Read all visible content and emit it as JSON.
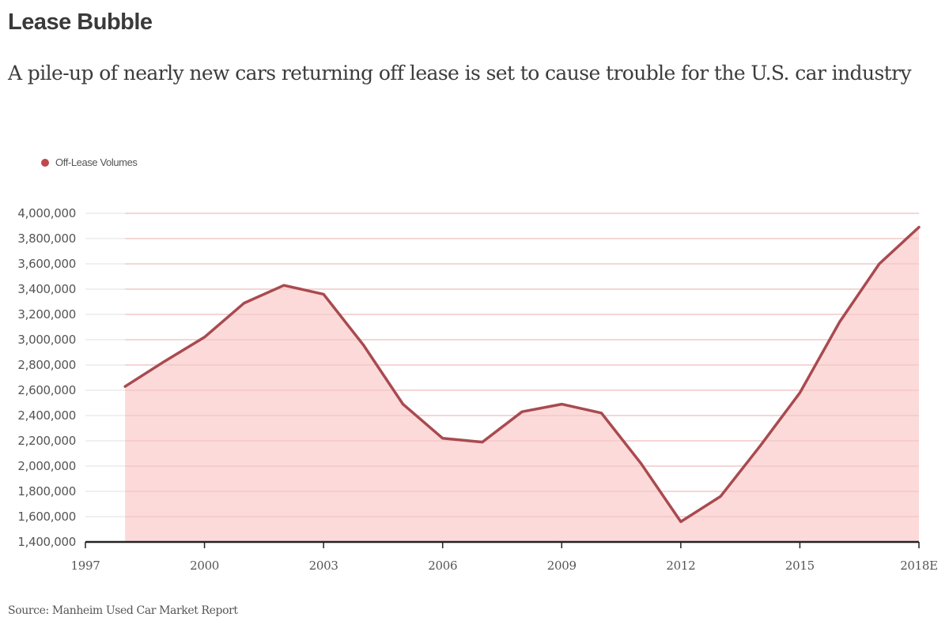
{
  "header": {
    "title": "Lease Bubble",
    "subtitle": "A pile-up of nearly new cars returning off lease is set to cause trouble for the U.S. car industry"
  },
  "footer": {
    "source": "Source: Manheim Used Car Market Report"
  },
  "colors": {
    "line": "#a94a4f",
    "fill": "#fbd3d3",
    "legend_dot": "#c0474c",
    "gridline": "#ececec",
    "axis": "#222222"
  },
  "chart_data": {
    "type": "area",
    "title": "Lease Bubble",
    "subtitle": "A pile-up of nearly new cars returning off lease is set to cause trouble for the U.S. car industry",
    "xlabel": "",
    "ylabel": "",
    "legend": {
      "entries": [
        "Off-Lease Volumes"
      ],
      "placement": "top-left"
    },
    "grid": true,
    "xlim": [
      1997,
      2018
    ],
    "ylim": [
      1400000,
      4000000
    ],
    "x_ticks": [
      {
        "value": 1997,
        "label": "1997"
      },
      {
        "value": 2000,
        "label": "2000"
      },
      {
        "value": 2003,
        "label": "2003"
      },
      {
        "value": 2006,
        "label": "2006"
      },
      {
        "value": 2009,
        "label": "2009"
      },
      {
        "value": 2012,
        "label": "2012"
      },
      {
        "value": 2015,
        "label": "2015"
      },
      {
        "value": 2018,
        "label": "2018E"
      }
    ],
    "y_ticks": [
      {
        "value": 4000000,
        "label": "4,000,000"
      },
      {
        "value": 3800000,
        "label": "3,800,000"
      },
      {
        "value": 3600000,
        "label": "3,600,000"
      },
      {
        "value": 3400000,
        "label": "3,400,000"
      },
      {
        "value": 3200000,
        "label": "3,200,000"
      },
      {
        "value": 3000000,
        "label": "3,000,000"
      },
      {
        "value": 2800000,
        "label": "2,800,000"
      },
      {
        "value": 2600000,
        "label": "2,600,000"
      },
      {
        "value": 2400000,
        "label": "2,400,000"
      },
      {
        "value": 2200000,
        "label": "2,200,000"
      },
      {
        "value": 2000000,
        "label": "2,000,000"
      },
      {
        "value": 1800000,
        "label": "1,800,000"
      },
      {
        "value": 1600000,
        "label": "1,600,000"
      },
      {
        "value": 1400000,
        "label": "1,400,000"
      }
    ],
    "x": [
      1998,
      1999,
      2000,
      2001,
      2002,
      2003,
      2004,
      2005,
      2006,
      2007,
      2008,
      2009,
      2010,
      2011,
      2012,
      2013,
      2014,
      2015,
      2016,
      2017,
      2018
    ],
    "series": [
      {
        "name": "Off-Lease Volumes",
        "values": [
          2630000,
          2830000,
          3020000,
          3290000,
          3430000,
          3360000,
          2960000,
          2490000,
          2220000,
          2190000,
          2430000,
          2490000,
          2420000,
          2020000,
          1560000,
          1760000,
          2160000,
          2580000,
          3140000,
          3600000,
          3890000
        ]
      }
    ]
  }
}
